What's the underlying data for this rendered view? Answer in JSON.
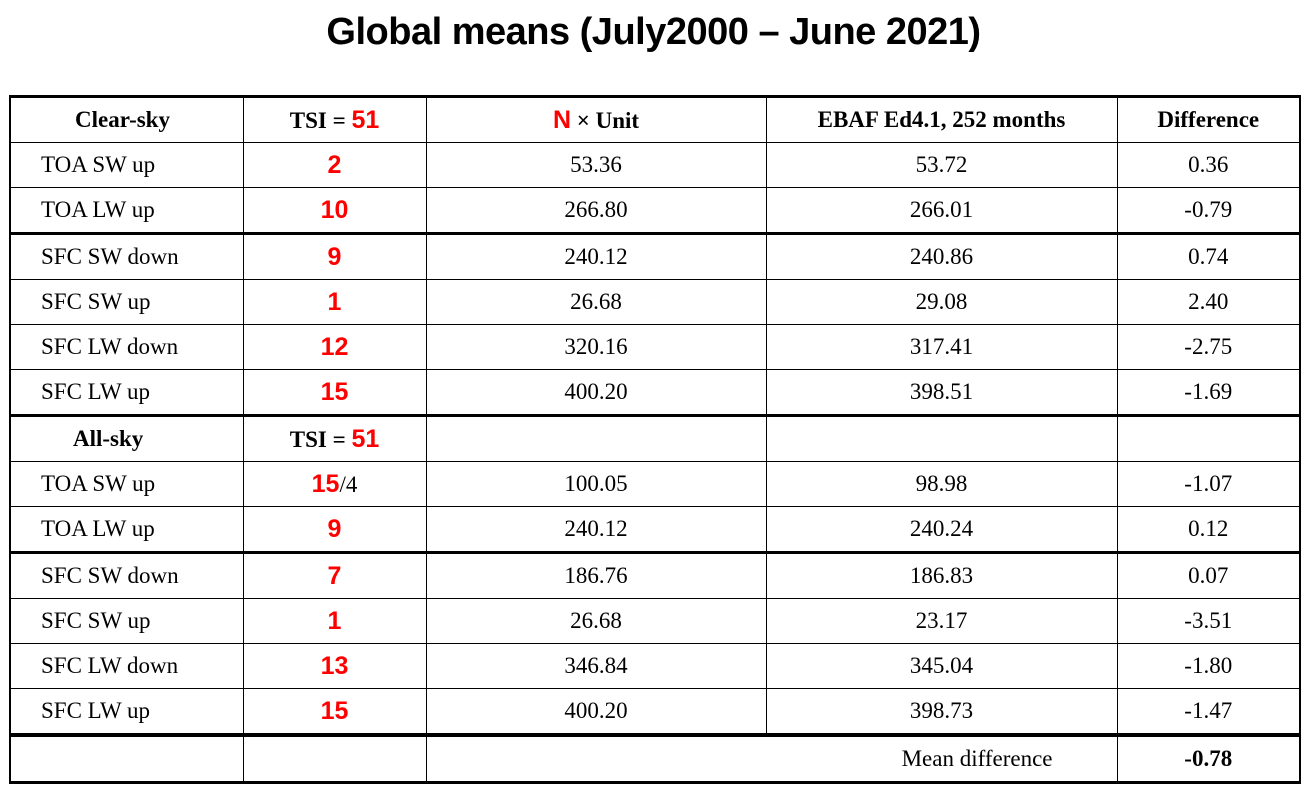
{
  "title": "Global means (July2000 – June 2021)",
  "header": {
    "col1": "Clear-sky",
    "tsi_prefix": "TSI = ",
    "tsi_value": "51",
    "n_symbol": "N",
    "n_suffix": " × Unit",
    "col4": "EBAF Ed4.1, 252 months",
    "col5": "Difference"
  },
  "clear_sky_rows": [
    {
      "label": "TOA SW up",
      "n": "2",
      "n_suffix": "",
      "n_unit": "53.36",
      "ebaf": "53.72",
      "diff": "0.36"
    },
    {
      "label": "TOA LW up",
      "n": "10",
      "n_suffix": "",
      "n_unit": "266.80",
      "ebaf": "266.01",
      "diff": "-0.79"
    },
    {
      "label": "SFC SW down",
      "n": "9",
      "n_suffix": "",
      "n_unit": "240.12",
      "ebaf": "240.86",
      "diff": "0.74"
    },
    {
      "label": "SFC SW up",
      "n": "1",
      "n_suffix": "",
      "n_unit": "26.68",
      "ebaf": "29.08",
      "diff": "2.40"
    },
    {
      "label": "SFC LW down",
      "n": "12",
      "n_suffix": "",
      "n_unit": "320.16",
      "ebaf": "317.41",
      "diff": "-2.75"
    },
    {
      "label": "SFC LW up",
      "n": "15",
      "n_suffix": "",
      "n_unit": "400.20",
      "ebaf": "398.51",
      "diff": "-1.69"
    }
  ],
  "all_sky_header": {
    "label": "All-sky",
    "tsi_prefix": "TSI = ",
    "tsi_value": "51"
  },
  "all_sky_rows": [
    {
      "label": "TOA SW up",
      "n": "15",
      "n_suffix": "/4",
      "n_unit": "100.05",
      "ebaf": "98.98",
      "diff": "-1.07"
    },
    {
      "label": "TOA LW up",
      "n": "9",
      "n_suffix": "",
      "n_unit": "240.12",
      "ebaf": "240.24",
      "diff": "0.12"
    },
    {
      "label": "SFC SW down",
      "n": "7",
      "n_suffix": "",
      "n_unit": "186.76",
      "ebaf": "186.83",
      "diff": "0.07"
    },
    {
      "label": "SFC SW up",
      "n": "1",
      "n_suffix": "",
      "n_unit": "26.68",
      "ebaf": "23.17",
      "diff": "-3.51"
    },
    {
      "label": "SFC LW down",
      "n": "13",
      "n_suffix": "",
      "n_unit": "346.84",
      "ebaf": "345.04",
      "diff": "-1.80"
    },
    {
      "label": "SFC LW up",
      "n": "15",
      "n_suffix": "",
      "n_unit": "400.20",
      "ebaf": "398.73",
      "diff": "-1.47"
    }
  ],
  "footer": {
    "mean_label": "Mean difference",
    "mean_value": "-0.78"
  },
  "colors": {
    "accent_red": "#ff0000"
  }
}
